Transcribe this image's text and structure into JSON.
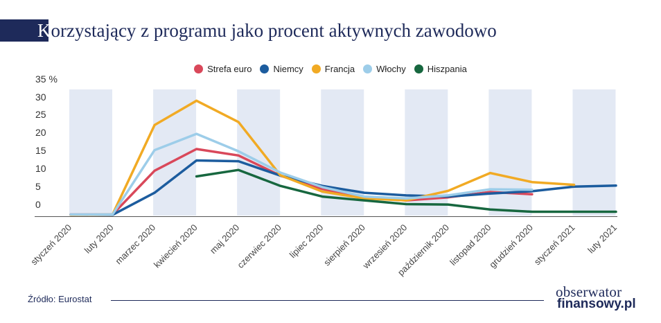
{
  "title": {
    "first_letter": "K",
    "rest": "orzystający z programu jako procent aktywnych zawodowo"
  },
  "source": "Źródło: Eurostat",
  "logo": {
    "line1": "obserwator",
    "line2": "finansowy.pl"
  },
  "colors": {
    "title": "#1e2a5a",
    "band": "#e3e9f4"
  },
  "chart_data": {
    "type": "line",
    "categories": [
      "styczeń 2020",
      "luty 2020",
      "marzec 2020",
      "kwiecień 2020",
      "maj 2020",
      "czerwiec 2020",
      "lipiec 2020",
      "sierpień 2020",
      "wrzesień 2020",
      "październik 2020",
      "listopad 2020",
      "grudzień 2020",
      "styczeń 2021",
      "luty 2021"
    ],
    "y_ticks": [
      "35 %",
      "30",
      "25",
      "20",
      "15",
      "10",
      "5",
      "0"
    ],
    "ylim": [
      0,
      35
    ],
    "legend_position": "top-center",
    "series": [
      {
        "name": "Strefa euro",
        "color": "#d9485a",
        "values": [
          0.3,
          0.3,
          11.8,
          17.5,
          15.8,
          10.5,
          7,
          4.6,
          4,
          4.8,
          6.2,
          5.6,
          null,
          null
        ]
      },
      {
        "name": "Niemcy",
        "color": "#1c5c9e",
        "values": [
          0.2,
          0.2,
          6,
          14.5,
          14.3,
          10.5,
          7.8,
          6,
          5.3,
          5,
          5.8,
          6.4,
          7.6,
          7.9
        ]
      },
      {
        "name": "Francja",
        "color": "#f1aa24",
        "values": [
          0.2,
          0.3,
          23.8,
          30.2,
          24.6,
          10.6,
          6.3,
          4.5,
          4,
          6.5,
          11.2,
          8.8,
          8.1,
          null
        ]
      },
      {
        "name": "Włochy",
        "color": "#9dcde9",
        "values": [
          0.3,
          0.3,
          17.2,
          21.5,
          16.9,
          11.3,
          7.5,
          5,
          4.5,
          5.3,
          6.9,
          6.8,
          null,
          null
        ]
      },
      {
        "name": "Hiszpania",
        "color": "#17673f",
        "values": [
          null,
          null,
          null,
          10.3,
          12,
          7.8,
          5,
          4,
          3,
          2.9,
          1.6,
          1,
          1,
          1
        ]
      }
    ]
  }
}
